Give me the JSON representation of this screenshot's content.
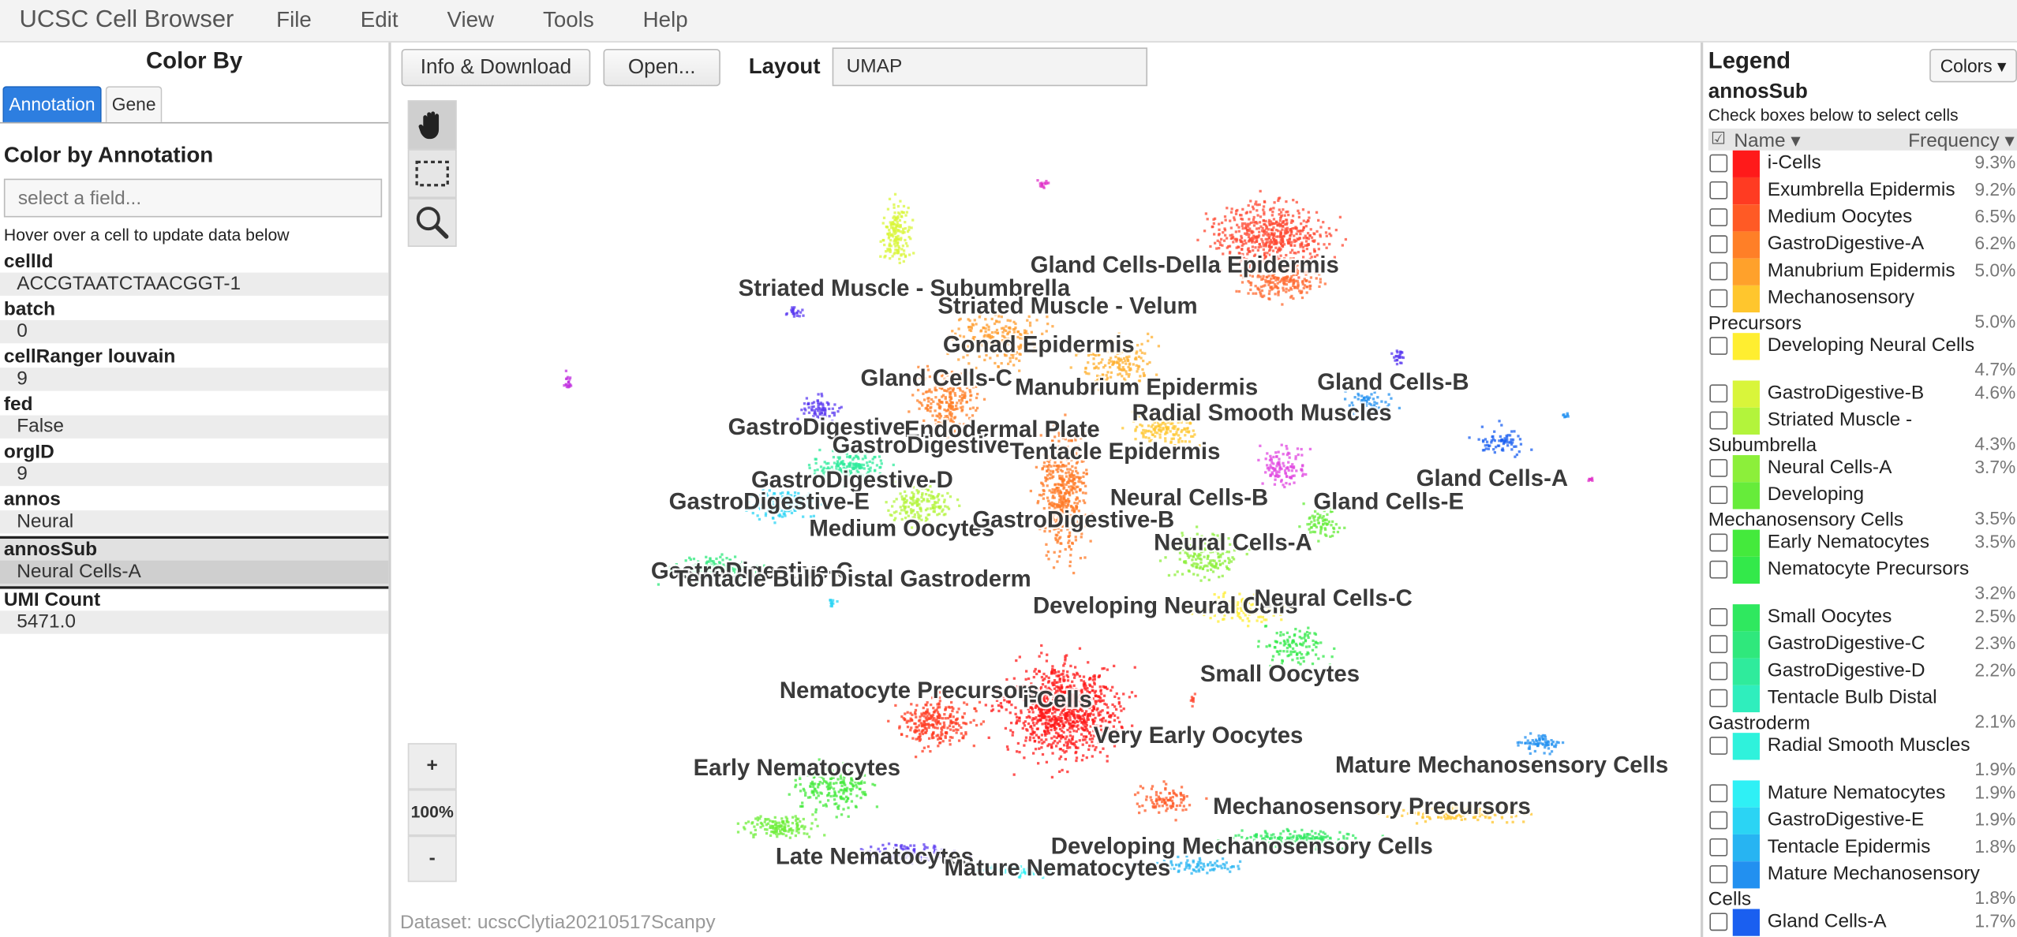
{
  "menubar": {
    "brand": "UCSC Cell Browser",
    "items": [
      "File",
      "Edit",
      "View",
      "Tools",
      "Help"
    ]
  },
  "left_panel": {
    "title": "Color By",
    "tabs": [
      {
        "label": "Annotation",
        "active": true
      },
      {
        "label": "Gene",
        "active": false
      }
    ],
    "section_title": "Color by Annotation",
    "field_placeholder": "select a field...",
    "hover_hint": "Hover over a cell to update data below",
    "meta_fields": [
      {
        "label": "cellId",
        "value": "ACCGTAATCTAACGGT-1",
        "selected": false
      },
      {
        "label": "batch",
        "value": "0",
        "selected": false
      },
      {
        "label": "cellRanger louvain",
        "value": "9",
        "selected": false
      },
      {
        "label": "fed",
        "value": "False",
        "selected": false
      },
      {
        "label": "orgID",
        "value": "9",
        "selected": false
      },
      {
        "label": "annos",
        "value": "Neural",
        "selected": false
      },
      {
        "label": "annosSub",
        "value": "Neural Cells-A",
        "selected": true
      },
      {
        "label": "UMI Count",
        "value": "5471.0",
        "selected": false
      }
    ]
  },
  "toolbar": {
    "info_download": "Info & Download",
    "open": "Open...",
    "layout_label": "Layout",
    "layout_value": "UMAP"
  },
  "tools": [
    {
      "name": "pan",
      "icon": "hand-icon",
      "active": true
    },
    {
      "name": "select",
      "icon": "rectangle-select-icon",
      "active": false
    },
    {
      "name": "zoom",
      "icon": "magnifier-icon",
      "active": false
    }
  ],
  "zoom": {
    "plus": "+",
    "level": "100%",
    "minus": "-"
  },
  "dataset_label": "Dataset: ucscClytia20210517Scanpy",
  "legend": {
    "title": "Legend",
    "colors_button": "Colors ▾",
    "field": "annosSub",
    "hint": "Check boxes below to select cells",
    "header_check": "☑",
    "header_name": "Name ▾",
    "header_freq": "Frequency ▾",
    "rows": [
      {
        "name": "i-Cells",
        "name2": "",
        "freq": "9.3%",
        "color": "#ff1a1a"
      },
      {
        "name": "Exumbrella Epidermis",
        "name2": "",
        "freq": "9.2%",
        "color": "#ff3b22"
      },
      {
        "name": "Medium Oocytes",
        "name2": "",
        "freq": "6.5%",
        "color": "#ff5a25"
      },
      {
        "name": "GastroDigestive-A",
        "name2": "",
        "freq": "6.2%",
        "color": "#ff7f27"
      },
      {
        "name": "Manubrium Epidermis",
        "name2": "",
        "freq": "5.0%",
        "color": "#ffa12b"
      },
      {
        "name": "Mechanosensory",
        "name2": "Precursors",
        "freq": "5.0%",
        "color": "#ffc62d"
      },
      {
        "name": "Developing Neural Cells",
        "name2": "",
        "freq": "4.7%",
        "color": "#ffee30",
        "freq_below": true
      },
      {
        "name": "GastroDigestive-B",
        "name2": "",
        "freq": "4.6%",
        "color": "#d9f53a"
      },
      {
        "name": "Striated Muscle -",
        "name2": "Subumbrella",
        "freq": "4.3%",
        "color": "#b3f43b"
      },
      {
        "name": "Neural Cells-A",
        "name2": "",
        "freq": "3.7%",
        "color": "#8cef3a"
      },
      {
        "name": "Developing",
        "name2": "Mechanosensory Cells",
        "freq": "3.5%",
        "color": "#66ec3a"
      },
      {
        "name": "Early Nematocytes",
        "name2": "",
        "freq": "3.5%",
        "color": "#44ea3c"
      },
      {
        "name": "Nematocyte Precursors",
        "name2": "",
        "freq": "3.2%",
        "color": "#33e94a",
        "freq_below": true
      },
      {
        "name": "Small Oocytes",
        "name2": "",
        "freq": "2.5%",
        "color": "#2fe85f"
      },
      {
        "name": "GastroDigestive-C",
        "name2": "",
        "freq": "2.3%",
        "color": "#2fe87c"
      },
      {
        "name": "GastroDigestive-D",
        "name2": "",
        "freq": "2.2%",
        "color": "#2feb9c"
      },
      {
        "name": "Tentacle Bulb Distal",
        "name2": "Gastroderm",
        "freq": "2.1%",
        "color": "#2feebd"
      },
      {
        "name": "Radial Smooth Muscles",
        "name2": "",
        "freq": "1.9%",
        "color": "#2ff2dc",
        "freq_below": true
      },
      {
        "name": "Mature Nematocytes",
        "name2": "",
        "freq": "1.9%",
        "color": "#2ff0f5"
      },
      {
        "name": "GastroDigestive-E",
        "name2": "",
        "freq": "1.9%",
        "color": "#2bd4f4"
      },
      {
        "name": "Tentacle Epidermis",
        "name2": "",
        "freq": "1.8%",
        "color": "#27b4f2"
      },
      {
        "name": "Mature Mechanosensory",
        "name2": "Cells",
        "freq": "1.8%",
        "color": "#2290f0"
      },
      {
        "name": "Gland Cells-A",
        "name2": "",
        "freq": "1.7%",
        "color": "#1a5ff0"
      }
    ]
  },
  "plot_labels": [
    "Gland Cells-Della Epidermis",
    "Striated Muscle - Subumbrella",
    "Striated Muscle - Velum",
    "Gonad Epidermis",
    "Gland Cells-B",
    "Gland Cells-C",
    "Manubrium Epidermis",
    "Radial Smooth Muscles",
    "GastroDigestive",
    "Endodermal Plate",
    "GastroDigestive",
    "Tentacle Epidermis",
    "Gland Cells-A",
    "GastroDigestive-D",
    "Neural Cells-B",
    "Gland Cells-E",
    "GastroDigestive-E",
    "Medium Oocytes",
    "GastroDigestive-B",
    "Neural Cells-A",
    "GastroDigestive-C",
    "Tentacle Bulb Distal Gastroderm",
    "Developing Neural Cells",
    "Neural Cells-C",
    "Small Oocytes",
    "Nematocyte Precursors",
    "i-Cells",
    "Very Early Oocytes",
    "Early Nematocytes",
    "Mature Mechanosensory Cells",
    "Mechanosensory Precursors",
    "Developing Mechanosensory Cells",
    "Late Nematocytes",
    "Mature Nematocytes"
  ]
}
